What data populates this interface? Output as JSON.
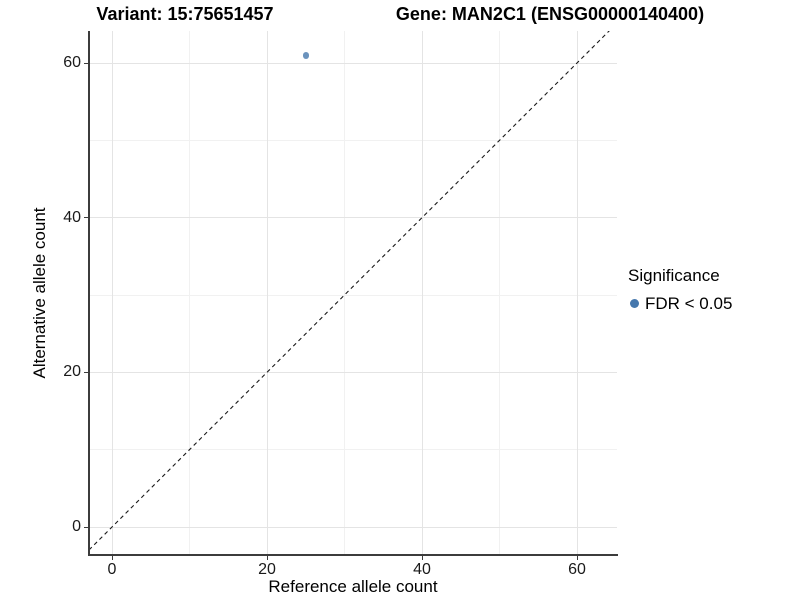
{
  "header": {
    "variant_title": "Variant: 15:75651457",
    "gene_title": "Gene: MAN2C1 (ENSG00000140400)"
  },
  "chart_data": {
    "type": "scatter",
    "title": "Variant: 15:75651457 / Gene: MAN2C1 (ENSG00000140400)",
    "xlabel": "Reference allele count",
    "ylabel": "Alternative allele count",
    "xlim": [
      -3,
      65
    ],
    "ylim": [
      -3.5,
      64.5
    ],
    "x_ticks": [
      0,
      20,
      40,
      60
    ],
    "y_ticks": [
      0,
      20,
      40,
      60
    ],
    "x_minor_ticks": [
      10,
      30,
      50
    ],
    "y_minor_ticks": [
      10,
      30,
      50
    ],
    "grid": "major and minor gridlines, light gray on white; left and bottom dark axis lines only",
    "series": [
      {
        "name": "FDR < 0.05",
        "color": "#4678ad",
        "points": [
          {
            "x": 25,
            "y": 61
          }
        ]
      }
    ],
    "reference_line": {
      "kind": "identity y = x",
      "style": "dashed",
      "color": "#1a1a1a"
    },
    "legend": {
      "title": "Significance",
      "position": "right",
      "items": [
        {
          "label": "FDR < 0.05",
          "color": "#4678ad",
          "marker": "circle"
        }
      ]
    }
  }
}
